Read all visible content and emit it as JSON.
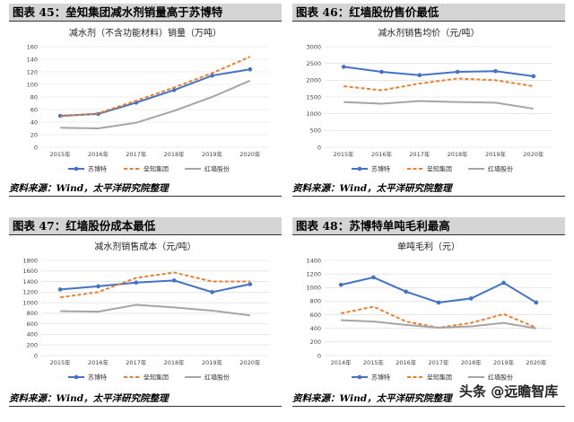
{
  "panels": [
    {
      "header": "图表 45：垒知集团减水剂销量高于苏博特",
      "source": "资料来源：Wind，太平洋研究院整理"
    },
    {
      "header": "图表 46：红墙股份售价最低",
      "source": "资料来源：Wind，太平洋研究院整理"
    },
    {
      "header": "图表 47：红墙股份成本最低",
      "source": "资料来源：Wind，太平洋研究院整理"
    },
    {
      "header": "图表 48：苏博特单吨毛利最高",
      "source": "资料来源：Wind，太平洋研究院整理"
    }
  ],
  "watermark": "头条 @远瞻智库",
  "colors": {
    "subote": "#4472c4",
    "leizhi": "#ed7d31",
    "hongqiang": "#a5a5a5",
    "grid": "#d9d9d9"
  },
  "chart_data": [
    {
      "type": "line",
      "title": "减水剂（不含功能材料）销量（万吨）",
      "x": [
        "2015年",
        "2016年",
        "2017年",
        "2018年",
        "2019年",
        "2020年"
      ],
      "ylim": [
        0,
        160
      ],
      "yticks": [
        0,
        20,
        40,
        60,
        80,
        100,
        120,
        140,
        160
      ],
      "grid": true,
      "legend": "bottom",
      "series": [
        {
          "name": "苏博特",
          "values": [
            50,
            53,
            71,
            91,
            114,
            124
          ]
        },
        {
          "name": "垒知集团",
          "values": [
            49,
            54,
            74,
            95,
            118,
            144
          ]
        },
        {
          "name": "红墙股份",
          "values": [
            31,
            30,
            39,
            58,
            80,
            106
          ]
        }
      ]
    },
    {
      "type": "line",
      "title": "减水剂销售均价（元/吨）",
      "x": [
        "2015年",
        "2016年",
        "2017年",
        "2018年",
        "2019年",
        "2020年"
      ],
      "ylim": [
        0,
        3000
      ],
      "yticks": [
        0,
        500,
        1000,
        1500,
        2000,
        2500,
        3000
      ],
      "grid": true,
      "legend": "bottom",
      "series": [
        {
          "name": "苏博特",
          "values": [
            2400,
            2250,
            2150,
            2250,
            2270,
            2120
          ]
        },
        {
          "name": "垒知集团",
          "values": [
            1820,
            1700,
            1900,
            2050,
            2000,
            1820
          ]
        },
        {
          "name": "红墙股份",
          "values": [
            1350,
            1300,
            1380,
            1350,
            1330,
            1150
          ]
        }
      ]
    },
    {
      "type": "line",
      "title": "减水剂销售成本（元/吨）",
      "x": [
        "2015年",
        "2016年",
        "2017年",
        "2018年",
        "2019年",
        "2020年"
      ],
      "ylim": [
        0,
        1800
      ],
      "yticks": [
        0,
        200,
        400,
        600,
        800,
        1000,
        1200,
        1400,
        1600,
        1800
      ],
      "grid": true,
      "legend": "bottom",
      "series": [
        {
          "name": "苏博特",
          "values": [
            1250,
            1310,
            1380,
            1420,
            1200,
            1350
          ]
        },
        {
          "name": "垒知集团",
          "values": [
            1100,
            1200,
            1470,
            1570,
            1400,
            1400
          ]
        },
        {
          "name": "红墙股份",
          "values": [
            840,
            830,
            960,
            910,
            850,
            760
          ]
        }
      ]
    },
    {
      "type": "line",
      "title": "单吨毛利（元）",
      "x": [
        "2014年",
        "2015年",
        "2016年",
        "2017年",
        "2018年",
        "2019年",
        "2020年"
      ],
      "ylim": [
        0,
        1400
      ],
      "yticks": [
        0,
        200,
        400,
        600,
        800,
        1000,
        1200,
        1400
      ],
      "grid": true,
      "legend": "bottom",
      "series": [
        {
          "name": "苏博特",
          "values": [
            1040,
            1150,
            940,
            780,
            840,
            1070,
            780
          ]
        },
        {
          "name": "垒知集团",
          "values": [
            620,
            720,
            500,
            410,
            480,
            610,
            410
          ]
        },
        {
          "name": "红墙股份",
          "values": [
            520,
            500,
            450,
            410,
            430,
            480,
            400
          ]
        }
      ]
    }
  ]
}
